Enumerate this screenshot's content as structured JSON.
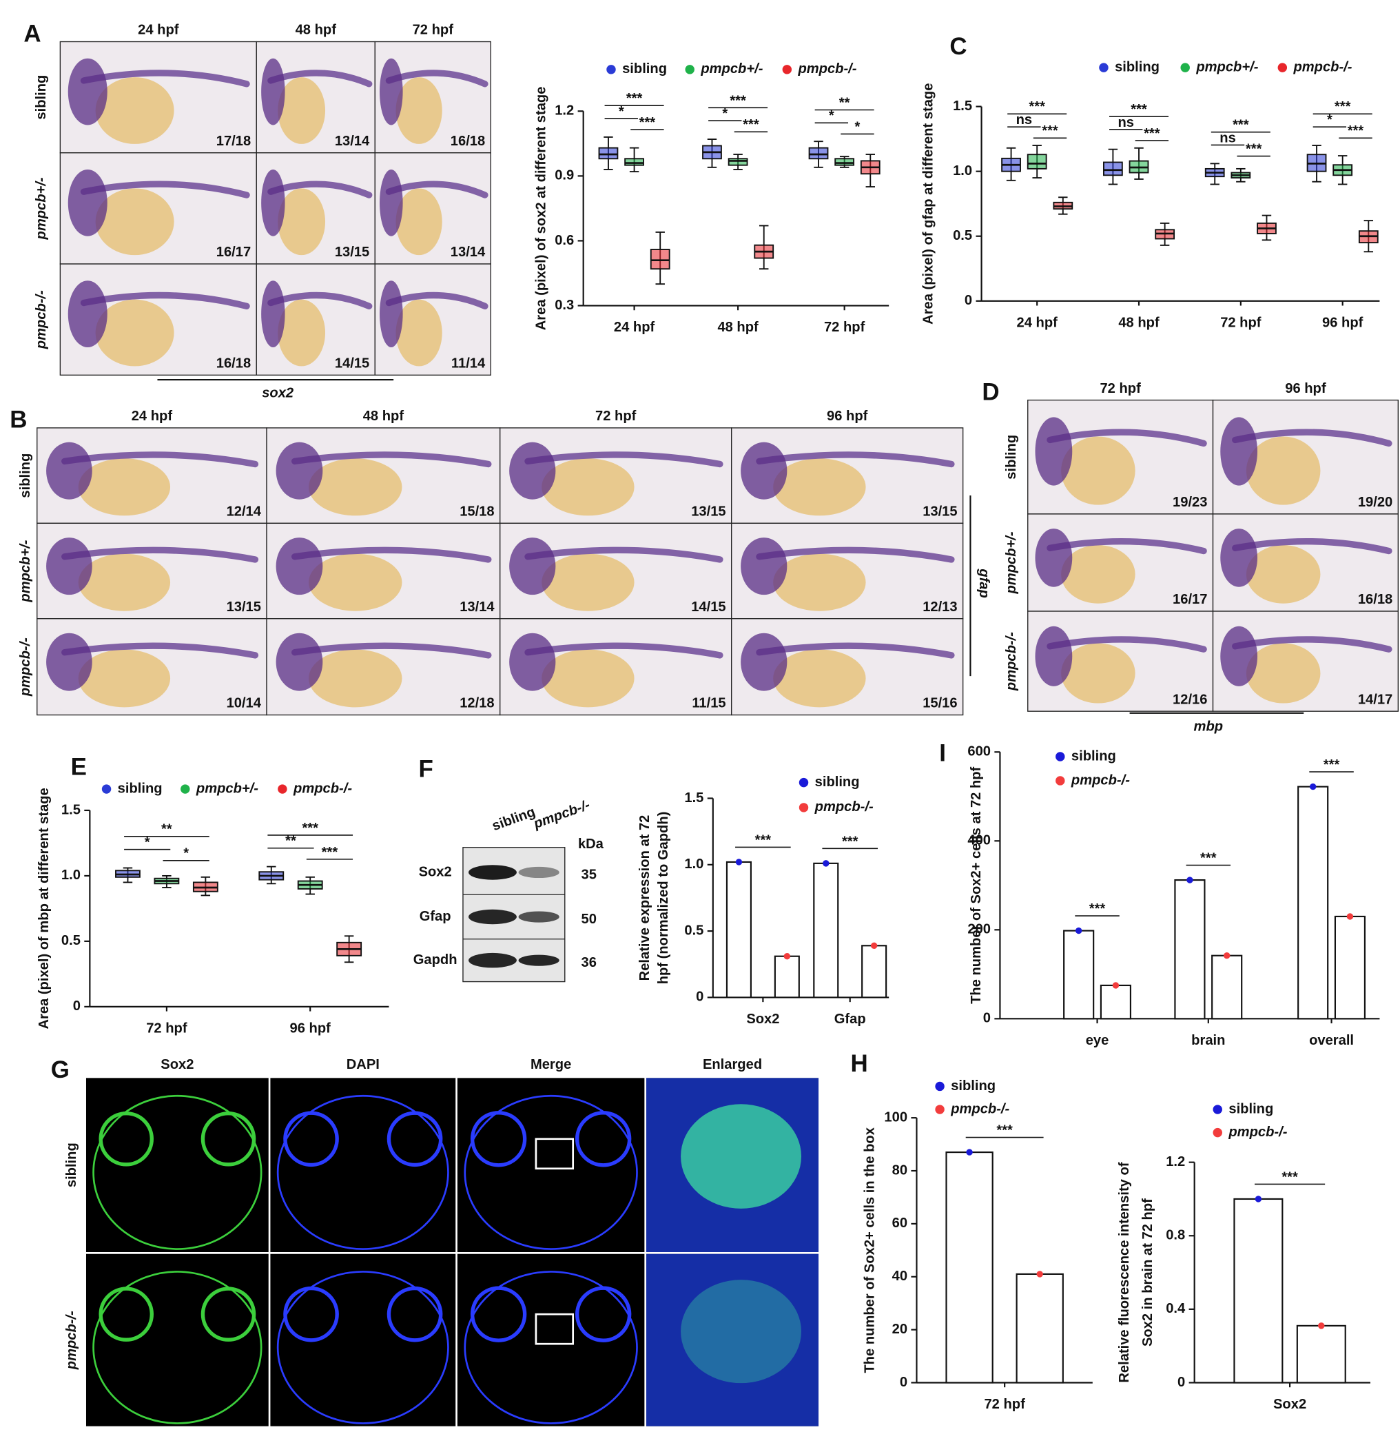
{
  "panel_labels": [
    "A",
    "B",
    "C",
    "D",
    "E",
    "F",
    "G",
    "H",
    "I"
  ],
  "panel_a": {
    "columns": [
      "24 hpf",
      "48 hpf",
      "72 hpf"
    ],
    "rows": [
      "sibling",
      "pmpcb+/-",
      "pmpcb-/-"
    ],
    "counts": [
      [
        "17/18",
        "13/14",
        "16/18"
      ],
      [
        "16/17",
        "13/15",
        "13/14"
      ],
      [
        "16/18",
        "14/15",
        "11/14"
      ]
    ],
    "gene": "sox2"
  },
  "panel_b": {
    "columns": [
      "24 hpf",
      "48 hpf",
      "72 hpf",
      "96 hpf"
    ],
    "rows": [
      "sibling",
      "pmpcb+/-",
      "pmpcb-/-"
    ],
    "counts": [
      [
        "12/14",
        "15/18",
        "13/15",
        "13/15"
      ],
      [
        "13/15",
        "13/14",
        "14/15",
        "12/13"
      ],
      [
        "10/14",
        "12/18",
        "11/15",
        "15/16"
      ]
    ],
    "gene": "gfap"
  },
  "panel_d": {
    "columns": [
      "72 hpf",
      "96 hpf"
    ],
    "rows": [
      "sibling",
      "pmpcb+/-",
      "pmpcb-/-"
    ],
    "counts": [
      [
        "19/23",
        "19/20"
      ],
      [
        "16/17",
        "16/18"
      ],
      [
        "12/16",
        "14/17"
      ]
    ],
    "gene": "mbp"
  },
  "panel_f_blot": {
    "lanes": [
      "sibling",
      "pmpcb-/-"
    ],
    "unit": "kDa",
    "proteins": [
      {
        "name": "Sox2",
        "kda": "35"
      },
      {
        "name": "Gfap",
        "kda": "50"
      },
      {
        "name": "Gapdh",
        "kda": "36"
      }
    ]
  },
  "panel_g": {
    "columns": [
      "Sox2",
      "DAPI",
      "Merge",
      "Enlarged"
    ],
    "rows": [
      "sibling",
      "pmpcb-/-"
    ]
  },
  "chart_data": [
    {
      "type": "box",
      "ylabel": "Area (pixel) of sox2 at different stage",
      "categories": [
        "24 hpf",
        "48 hpf",
        "72 hpf"
      ],
      "ylim": [
        0.3,
        1.2
      ],
      "yticks": [
        0.3,
        0.6,
        0.9,
        1.2
      ],
      "series": [
        {
          "name": "sibling",
          "color": "#2a3bd6",
          "boxes": [
            {
              "min": 0.93,
              "q1": 0.98,
              "median": 1.0,
              "q3": 1.03,
              "max": 1.08
            },
            {
              "min": 0.94,
              "q1": 0.98,
              "median": 1.01,
              "q3": 1.04,
              "max": 1.07
            },
            {
              "min": 0.94,
              "q1": 0.98,
              "median": 1.0,
              "q3": 1.03,
              "max": 1.06
            }
          ]
        },
        {
          "name": "pmpcb+/-",
          "color": "#1fb24a",
          "boxes": [
            {
              "min": 0.92,
              "q1": 0.95,
              "median": 0.96,
              "q3": 0.98,
              "max": 1.03
            },
            {
              "min": 0.93,
              "q1": 0.95,
              "median": 0.97,
              "q3": 0.98,
              "max": 1.0
            },
            {
              "min": 0.94,
              "q1": 0.95,
              "median": 0.96,
              "q3": 0.98,
              "max": 0.99
            }
          ]
        },
        {
          "name": "pmpcb-/-",
          "color": "#e8262b",
          "boxes": [
            {
              "min": 0.4,
              "q1": 0.47,
              "median": 0.51,
              "q3": 0.56,
              "max": 0.64
            },
            {
              "min": 0.47,
              "q1": 0.52,
              "median": 0.55,
              "q3": 0.58,
              "max": 0.67
            },
            {
              "min": 0.85,
              "q1": 0.91,
              "median": 0.94,
              "q3": 0.97,
              "max": 1.0
            }
          ]
        }
      ],
      "significance": [
        [
          "***",
          "*",
          "***"
        ],
        [
          "***",
          "*",
          "***"
        ],
        [
          "**",
          "*",
          "*"
        ]
      ]
    },
    {
      "type": "box",
      "ylabel": "Area (pixel) of gfap at different stage",
      "categories": [
        "24 hpf",
        "48 hpf",
        "72 hpf",
        "96 hpf"
      ],
      "ylim": [
        0,
        1.5
      ],
      "yticks": [
        0,
        0.5,
        {
          "value": 1,
          "label": "1.0"
        },
        1.5
      ],
      "series": [
        {
          "name": "sibling",
          "color": "#2a3bd6",
          "boxes": [
            {
              "min": 0.93,
              "q1": 1.0,
              "median": 1.05,
              "q3": 1.1,
              "max": 1.18
            },
            {
              "min": 0.9,
              "q1": 0.97,
              "median": 1.01,
              "q3": 1.07,
              "max": 1.17
            },
            {
              "min": 0.9,
              "q1": 0.96,
              "median": 0.99,
              "q3": 1.02,
              "max": 1.06
            },
            {
              "min": 0.92,
              "q1": 1.0,
              "median": 1.06,
              "q3": 1.13,
              "max": 1.2
            }
          ]
        },
        {
          "name": "pmpcb+/-",
          "color": "#1fb24a",
          "boxes": [
            {
              "min": 0.95,
              "q1": 1.02,
              "median": 1.06,
              "q3": 1.13,
              "max": 1.2
            },
            {
              "min": 0.94,
              "q1": 0.99,
              "median": 1.03,
              "q3": 1.08,
              "max": 1.18
            },
            {
              "min": 0.92,
              "q1": 0.95,
              "median": 0.97,
              "q3": 0.99,
              "max": 1.02
            },
            {
              "min": 0.9,
              "q1": 0.97,
              "median": 1.01,
              "q3": 1.05,
              "max": 1.12
            }
          ]
        },
        {
          "name": "pmpcb-/-",
          "color": "#e8262b",
          "boxes": [
            {
              "min": 0.67,
              "q1": 0.71,
              "median": 0.73,
              "q3": 0.76,
              "max": 0.8
            },
            {
              "min": 0.43,
              "q1": 0.48,
              "median": 0.52,
              "q3": 0.55,
              "max": 0.6
            },
            {
              "min": 0.47,
              "q1": 0.52,
              "median": 0.56,
              "q3": 0.6,
              "max": 0.66
            },
            {
              "min": 0.38,
              "q1": 0.45,
              "median": 0.5,
              "q3": 0.54,
              "max": 0.62
            }
          ]
        }
      ],
      "significance": [
        [
          "***",
          "ns",
          "***"
        ],
        [
          "***",
          "ns",
          "***"
        ],
        [
          "***",
          "ns",
          "***"
        ],
        [
          "***",
          "*",
          "***"
        ]
      ]
    },
    {
      "type": "box",
      "ylabel": "Area (pixel) of mbp at different stage",
      "categories": [
        "72 hpf",
        "96 hpf"
      ],
      "ylim": [
        0,
        1.5
      ],
      "yticks": [
        0,
        0.5,
        {
          "value": 1,
          "label": "1.0"
        },
        1.5
      ],
      "series": [
        {
          "name": "sibling",
          "color": "#2a3bd6",
          "boxes": [
            {
              "min": 0.95,
              "q1": 0.99,
              "median": 1.01,
              "q3": 1.04,
              "max": 1.06
            },
            {
              "min": 0.94,
              "q1": 0.97,
              "median": 1.0,
              "q3": 1.03,
              "max": 1.07
            }
          ]
        },
        {
          "name": "pmpcb+/-",
          "color": "#1fb24a",
          "boxes": [
            {
              "min": 0.91,
              "q1": 0.94,
              "median": 0.96,
              "q3": 0.98,
              "max": 1.0
            },
            {
              "min": 0.86,
              "q1": 0.9,
              "median": 0.93,
              "q3": 0.96,
              "max": 0.99
            }
          ]
        },
        {
          "name": "pmpcb-/-",
          "color": "#e8262b",
          "boxes": [
            {
              "min": 0.85,
              "q1": 0.88,
              "median": 0.91,
              "q3": 0.95,
              "max": 0.99
            },
            {
              "min": 0.34,
              "q1": 0.39,
              "median": 0.44,
              "q3": 0.49,
              "max": 0.54
            }
          ]
        }
      ],
      "significance": [
        [
          "**",
          "*",
          "*"
        ],
        [
          "***",
          "**",
          "***"
        ]
      ]
    },
    {
      "type": "bar",
      "ylabel": [
        "Relative expression at 72",
        "hpf (normalized to Gapdh)"
      ],
      "categories": [
        "Sox2",
        "Gfap"
      ],
      "ylim": [
        0,
        1.5
      ],
      "yticks": [
        0,
        0.5,
        {
          "value": 1,
          "label": "1.0"
        },
        1.5
      ],
      "series": [
        {
          "name": "sibling",
          "color": "#1a1ad8",
          "values": [
            1.02,
            1.01
          ]
        },
        {
          "name": "pmpcb-/-",
          "color": "#f23c3c",
          "values": [
            0.31,
            0.39
          ]
        }
      ],
      "significance": [
        [
          "***"
        ],
        [
          "***"
        ]
      ]
    },
    {
      "type": "bar",
      "ylabel": "The number of Sox2+ cells at 72 hpf",
      "categories": [
        "eye",
        "brain",
        "overall"
      ],
      "ylim": [
        0,
        600
      ],
      "yticks": [
        0,
        200,
        400,
        600
      ],
      "series": [
        {
          "name": "sibling",
          "color": "#1a1ad8",
          "values": [
            198,
            312,
            522
          ]
        },
        {
          "name": "pmpcb-/-",
          "color": "#f23c3c",
          "values": [
            75,
            142,
            230
          ]
        }
      ],
      "significance": [
        [
          "***"
        ],
        [
          "***"
        ],
        [
          "***"
        ]
      ]
    },
    {
      "type": "bar",
      "ylabel": "The number of Sox2+ cells in the box",
      "categories": [
        "72 hpf"
      ],
      "ylim": [
        0,
        100
      ],
      "yticks": [
        0,
        20,
        40,
        60,
        80,
        100
      ],
      "series": [
        {
          "name": "sibling",
          "color": "#1a1ad8",
          "values": [
            87
          ]
        },
        {
          "name": "pmpcb-/-",
          "color": "#f23c3c",
          "values": [
            41
          ]
        }
      ],
      "significance": [
        [
          "***"
        ]
      ]
    },
    {
      "type": "bar",
      "ylabel": [
        "Relative fluorescence intensity of",
        "Sox2 in brain at 72 hpf"
      ],
      "categories": [
        "Sox2"
      ],
      "ylim": [
        0,
        1.2
      ],
      "yticks": [
        0,
        0.4,
        0.8,
        1.2
      ],
      "series": [
        {
          "name": "sibling",
          "color": "#1a1ad8",
          "values": [
            1.0
          ]
        },
        {
          "name": "pmpcb-/-",
          "color": "#f23c3c",
          "values": [
            0.31
          ]
        }
      ],
      "significance": [
        [
          "***"
        ]
      ]
    }
  ]
}
